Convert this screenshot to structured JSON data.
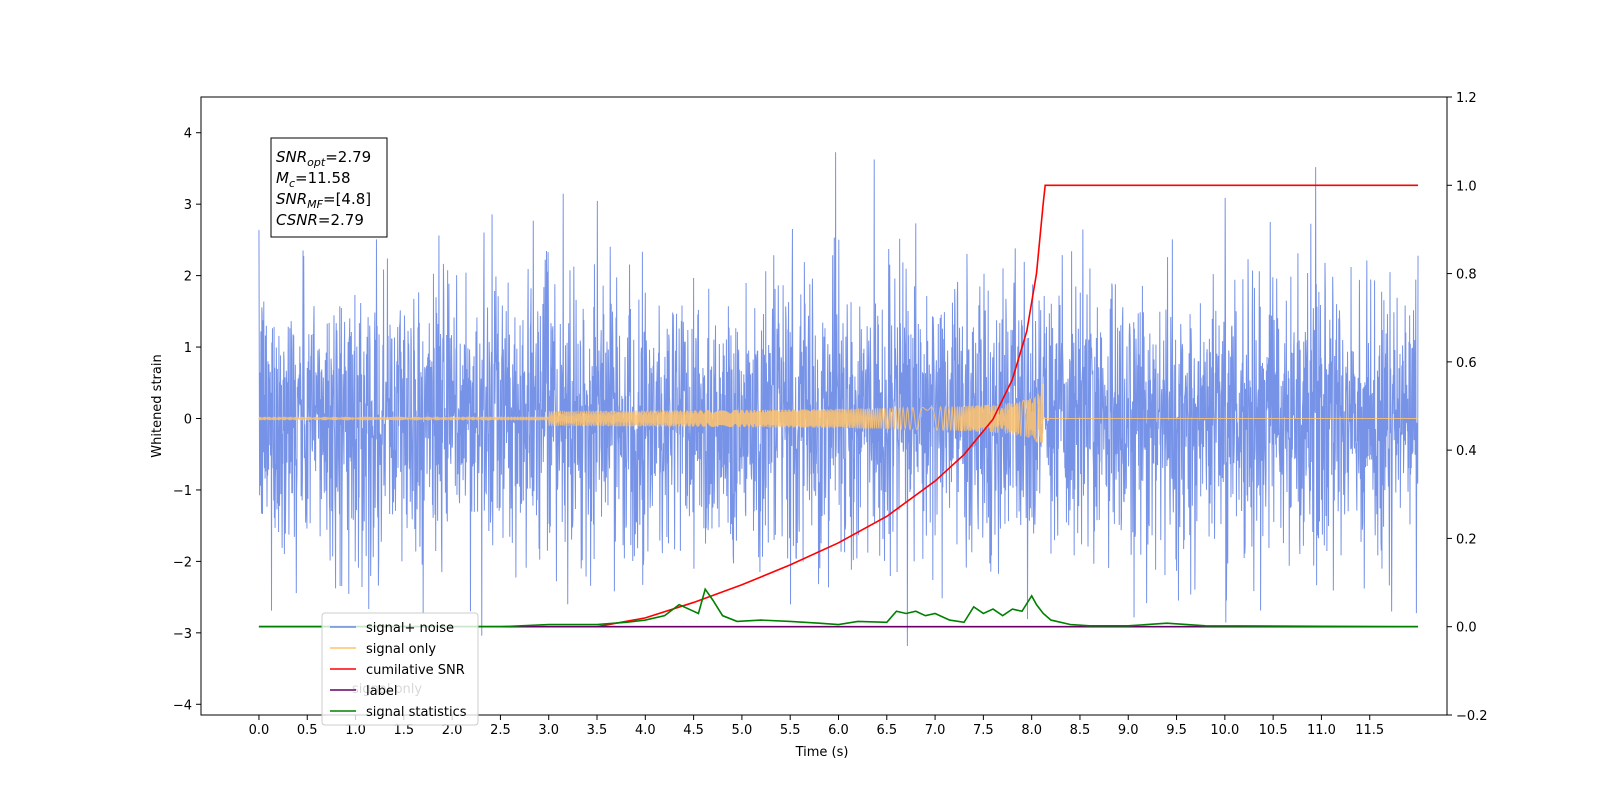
{
  "chart_data": {
    "type": "line",
    "title": "",
    "xlabel": "Time (s)",
    "ylabel_left": "Whitened strain",
    "ylabel_right": "",
    "xlim": [
      -0.6,
      12.3
    ],
    "ylim_left": [
      -4.15,
      4.5
    ],
    "ylim_right": [
      -0.2,
      1.2
    ],
    "x_ticks": [
      0.0,
      0.5,
      1.0,
      1.5,
      2.0,
      2.5,
      3.0,
      3.5,
      4.0,
      4.5,
      5.0,
      5.5,
      6.0,
      6.5,
      7.0,
      7.5,
      8.0,
      8.5,
      9.0,
      9.5,
      10.0,
      10.5,
      11.0,
      11.5
    ],
    "x_tick_labels": [
      "0.0",
      "0.5",
      "1.0",
      "1.5",
      "2.0",
      "2.5",
      "3.0",
      "3.5",
      "4.0",
      "4.5",
      "5.0",
      "5.5",
      "6.0",
      "6.5",
      "7.0",
      "7.5",
      "8.0",
      "8.5",
      "9.0",
      "9.5",
      "10.0",
      "10.5",
      "11.0",
      "11.5"
    ],
    "y_left_ticks": [
      -4,
      -3,
      -2,
      -1,
      0,
      1,
      2,
      3,
      4
    ],
    "y_left_tick_labels": [
      "−4",
      "−3",
      "−2",
      "−1",
      "0",
      "1",
      "2",
      "3",
      "4"
    ],
    "y_right_ticks": [
      -0.2,
      0.0,
      0.2,
      0.4,
      0.6,
      0.8,
      1.0,
      1.2
    ],
    "y_right_tick_labels": [
      "−0.2",
      "0.0",
      "0.2",
      "0.4",
      "0.6",
      "0.8",
      "1.0",
      "1.2"
    ],
    "grid": false,
    "legend_position": "lower-left",
    "series": [
      {
        "name": "signal+ noise",
        "axis": "left",
        "color": "#6b8ae6",
        "style": "noise",
        "description_values": {
          "x_start": 0.0,
          "x_end": 12.0,
          "typical_amplitude": 1.0,
          "max": 4.1,
          "min": -3.75
        }
      },
      {
        "name": "signal only",
        "axis": "left",
        "color": "#ffc36b",
        "style": "chirp",
        "description_values": {
          "x_start": 0.0,
          "x_merger": 8.12,
          "x_end": 12.0,
          "peak_amplitude": 0.5
        }
      },
      {
        "name": "cumilative SNR",
        "axis": "right",
        "color": "#ff0000",
        "x": [
          0.0,
          3.5,
          4.0,
          4.5,
          5.0,
          5.5,
          6.0,
          6.5,
          7.0,
          7.3,
          7.6,
          7.8,
          7.95,
          8.05,
          8.12,
          8.14,
          12.0
        ],
        "y": [
          0.0,
          0.0,
          0.02,
          0.055,
          0.095,
          0.14,
          0.19,
          0.25,
          0.33,
          0.39,
          0.47,
          0.56,
          0.67,
          0.8,
          0.96,
          1.0,
          1.0
        ]
      },
      {
        "name": "label",
        "axis": "right",
        "color": "#660066",
        "x": [
          0.0,
          12.0
        ],
        "y": [
          0.0,
          0.0
        ]
      },
      {
        "name": "signal statistics",
        "axis": "right",
        "color": "#008000",
        "x": [
          0.0,
          2.5,
          3.0,
          3.5,
          3.8,
          4.0,
          4.2,
          4.35,
          4.45,
          4.55,
          4.62,
          4.7,
          4.8,
          4.95,
          5.2,
          5.5,
          5.8,
          6.0,
          6.2,
          6.5,
          6.6,
          6.7,
          6.8,
          6.9,
          7.0,
          7.15,
          7.3,
          7.4,
          7.5,
          7.6,
          7.7,
          7.8,
          7.9,
          8.0,
          8.05,
          8.12,
          8.2,
          8.4,
          8.6,
          9.0,
          9.4,
          9.8,
          12.0
        ],
        "y": [
          0.0,
          0.0,
          0.005,
          0.005,
          0.01,
          0.015,
          0.025,
          0.05,
          0.04,
          0.03,
          0.085,
          0.06,
          0.025,
          0.012,
          0.015,
          0.012,
          0.008,
          0.005,
          0.012,
          0.01,
          0.035,
          0.03,
          0.035,
          0.025,
          0.03,
          0.015,
          0.01,
          0.045,
          0.03,
          0.04,
          0.025,
          0.04,
          0.035,
          0.07,
          0.05,
          0.03,
          0.015,
          0.005,
          0.002,
          0.002,
          0.008,
          0.002,
          0.0
        ]
      }
    ],
    "legend": [
      {
        "label": "signal+ noise",
        "color": "#6b8ae6"
      },
      {
        "label": "signal only",
        "color": "#ffc36b"
      },
      {
        "label": "cumilative SNR",
        "color": "#ff0000"
      },
      {
        "label": "label",
        "color": "#660066"
      },
      {
        "label": "signal statistics",
        "color": "#008000"
      }
    ],
    "annotation": {
      "lines": [
        {
          "main": "SNR",
          "sub": "opt",
          "rest": "=2.79"
        },
        {
          "main": "M",
          "sub": "c",
          "rest": "=11.58"
        },
        {
          "main": "SNR",
          "sub": "MF",
          "rest": "=[4.8]"
        },
        {
          "main": "CSNR",
          "sub": "",
          "rest": "=2.79"
        }
      ]
    },
    "hidden_legend_text": "signal only"
  }
}
